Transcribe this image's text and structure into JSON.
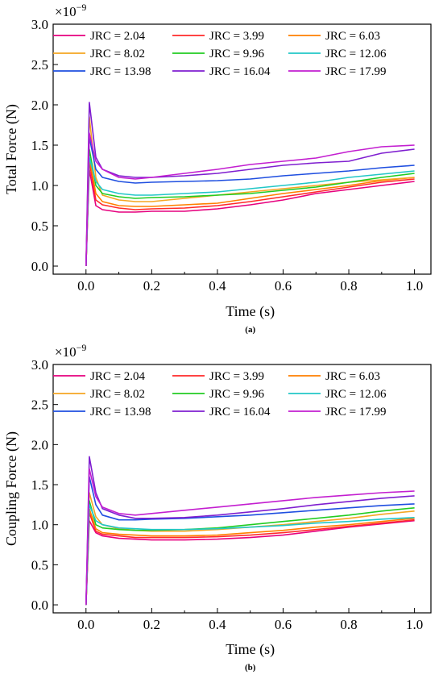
{
  "figure": {
    "background": "#ffffff"
  },
  "chart_data": [
    {
      "type": "line",
      "ylabel": "Total Force (N)",
      "xlabel": "Time (s)",
      "caption": "(a)",
      "multiplier_base": "×10",
      "multiplier_exp": "−9",
      "xlim": [
        -0.1,
        1.05
      ],
      "ylim": [
        -0.1,
        3.0
      ],
      "xticks": [
        "0.0",
        "0.2",
        "0.4",
        "0.6",
        "0.8",
        "1.0"
      ],
      "yticks": [
        "0.0",
        "0.5",
        "1.0",
        "1.5",
        "2.0",
        "2.5",
        "3.0"
      ],
      "legend_position": "top",
      "series": [
        {
          "name": "JRC = 2.04",
          "color": "#e6007e",
          "x": [
            0,
            0.01,
            0.03,
            0.05,
            0.1,
            0.15,
            0.2,
            0.3,
            0.4,
            0.5,
            0.6,
            0.7,
            0.8,
            0.9,
            1.0
          ],
          "y": [
            0,
            1.2,
            0.75,
            0.7,
            0.67,
            0.67,
            0.68,
            0.68,
            0.71,
            0.76,
            0.82,
            0.9,
            0.95,
            1.0,
            1.05
          ]
        },
        {
          "name": "JRC = 3.99",
          "color": "#ff2a2a",
          "x": [
            0,
            0.01,
            0.03,
            0.05,
            0.1,
            0.15,
            0.2,
            0.3,
            0.4,
            0.5,
            0.6,
            0.7,
            0.8,
            0.9,
            1.0
          ],
          "y": [
            0,
            1.3,
            0.82,
            0.76,
            0.72,
            0.7,
            0.71,
            0.72,
            0.75,
            0.8,
            0.86,
            0.92,
            0.98,
            1.04,
            1.08
          ]
        },
        {
          "name": "JRC = 6.03",
          "color": "#ff7f00",
          "x": [
            0,
            0.01,
            0.03,
            0.05,
            0.1,
            0.15,
            0.2,
            0.3,
            0.4,
            0.5,
            0.6,
            0.7,
            0.8,
            0.9,
            1.0
          ],
          "y": [
            0,
            1.35,
            0.9,
            0.8,
            0.75,
            0.74,
            0.74,
            0.76,
            0.78,
            0.84,
            0.9,
            0.95,
            1.0,
            1.06,
            1.1
          ]
        },
        {
          "name": "JRC = 8.02",
          "color": "#f5a623",
          "x": [
            0,
            0.01,
            0.03,
            0.05,
            0.1,
            0.15,
            0.2,
            0.3,
            0.4,
            0.5,
            0.6,
            0.7,
            0.8,
            0.9,
            1.0
          ],
          "y": [
            0,
            1.85,
            1.1,
            0.88,
            0.82,
            0.8,
            0.8,
            0.84,
            0.88,
            0.92,
            0.96,
            1.0,
            1.04,
            1.07,
            1.1
          ]
        },
        {
          "name": "JRC = 9.96",
          "color": "#22cc22",
          "x": [
            0,
            0.01,
            0.03,
            0.05,
            0.1,
            0.15,
            0.2,
            0.3,
            0.4,
            0.5,
            0.6,
            0.7,
            0.8,
            0.9,
            1.0
          ],
          "y": [
            0,
            1.45,
            1.0,
            0.9,
            0.86,
            0.84,
            0.85,
            0.86,
            0.88,
            0.9,
            0.94,
            0.98,
            1.04,
            1.1,
            1.15
          ]
        },
        {
          "name": "JRC = 12.06",
          "color": "#22c7c7",
          "x": [
            0,
            0.01,
            0.03,
            0.05,
            0.1,
            0.15,
            0.2,
            0.3,
            0.4,
            0.5,
            0.6,
            0.7,
            0.8,
            0.9,
            1.0
          ],
          "y": [
            0,
            1.35,
            1.05,
            0.95,
            0.9,
            0.88,
            0.88,
            0.9,
            0.92,
            0.96,
            1.0,
            1.04,
            1.1,
            1.14,
            1.18
          ]
        },
        {
          "name": "JRC = 13.98",
          "color": "#1f4fe0",
          "x": [
            0,
            0.01,
            0.03,
            0.05,
            0.1,
            0.15,
            0.2,
            0.3,
            0.4,
            0.5,
            0.6,
            0.7,
            0.8,
            0.9,
            1.0
          ],
          "y": [
            0,
            1.6,
            1.2,
            1.1,
            1.05,
            1.03,
            1.04,
            1.05,
            1.06,
            1.08,
            1.12,
            1.15,
            1.18,
            1.22,
            1.25
          ]
        },
        {
          "name": "JRC = 16.04",
          "color": "#7f1fd0",
          "x": [
            0,
            0.01,
            0.03,
            0.05,
            0.1,
            0.15,
            0.2,
            0.3,
            0.4,
            0.5,
            0.6,
            0.7,
            0.8,
            0.9,
            1.0
          ],
          "y": [
            0,
            2.03,
            1.35,
            1.2,
            1.12,
            1.1,
            1.1,
            1.12,
            1.15,
            1.2,
            1.25,
            1.28,
            1.3,
            1.4,
            1.45
          ]
        },
        {
          "name": "JRC = 17.99",
          "color": "#c31fd0",
          "x": [
            0,
            0.01,
            0.03,
            0.05,
            0.1,
            0.15,
            0.2,
            0.3,
            0.4,
            0.5,
            0.6,
            0.7,
            0.8,
            0.9,
            1.0
          ],
          "y": [
            0,
            1.65,
            1.3,
            1.2,
            1.1,
            1.08,
            1.1,
            1.15,
            1.2,
            1.26,
            1.3,
            1.34,
            1.42,
            1.48,
            1.5
          ]
        }
      ]
    },
    {
      "type": "line",
      "ylabel": "Coupling Force (N)",
      "xlabel": "Time (s)",
      "caption": "(b)",
      "multiplier_base": "×10",
      "multiplier_exp": "−9",
      "xlim": [
        -0.1,
        1.05
      ],
      "ylim": [
        -0.1,
        3.0
      ],
      "xticks": [
        "0.0",
        "0.2",
        "0.4",
        "0.6",
        "0.8",
        "1.0"
      ],
      "yticks": [
        "0.0",
        "0.5",
        "1.0",
        "1.5",
        "2.0",
        "2.5",
        "3.0"
      ],
      "legend_position": "top",
      "series": [
        {
          "name": "JRC = 2.04",
          "color": "#e6007e",
          "x": [
            0,
            0.01,
            0.03,
            0.05,
            0.1,
            0.15,
            0.2,
            0.3,
            0.4,
            0.5,
            0.6,
            0.7,
            0.8,
            0.9,
            1.0
          ],
          "y": [
            0,
            1.05,
            0.9,
            0.86,
            0.83,
            0.82,
            0.81,
            0.81,
            0.82,
            0.84,
            0.87,
            0.92,
            0.97,
            1.01,
            1.05
          ]
        },
        {
          "name": "JRC = 3.99",
          "color": "#ff2a2a",
          "x": [
            0,
            0.01,
            0.03,
            0.05,
            0.1,
            0.15,
            0.2,
            0.3,
            0.4,
            0.5,
            0.6,
            0.7,
            0.8,
            0.9,
            1.0
          ],
          "y": [
            0,
            1.15,
            0.92,
            0.88,
            0.86,
            0.84,
            0.84,
            0.84,
            0.85,
            0.87,
            0.9,
            0.94,
            0.98,
            1.02,
            1.06
          ]
        },
        {
          "name": "JRC = 6.03",
          "color": "#ff7f00",
          "x": [
            0,
            0.01,
            0.03,
            0.05,
            0.1,
            0.15,
            0.2,
            0.3,
            0.4,
            0.5,
            0.6,
            0.7,
            0.8,
            0.9,
            1.0
          ],
          "y": [
            0,
            1.2,
            0.95,
            0.9,
            0.88,
            0.87,
            0.86,
            0.86,
            0.87,
            0.9,
            0.93,
            0.97,
            1.0,
            1.04,
            1.08
          ]
        },
        {
          "name": "JRC = 8.02",
          "color": "#f5a623",
          "x": [
            0,
            0.01,
            0.03,
            0.05,
            0.1,
            0.15,
            0.2,
            0.3,
            0.4,
            0.5,
            0.6,
            0.7,
            0.8,
            0.9,
            1.0
          ],
          "y": [
            0,
            1.4,
            1.1,
            1.0,
            0.95,
            0.93,
            0.92,
            0.92,
            0.94,
            0.97,
            1.0,
            1.04,
            1.08,
            1.13,
            1.17
          ]
        },
        {
          "name": "JRC = 9.96",
          "color": "#22cc22",
          "x": [
            0,
            0.01,
            0.03,
            0.05,
            0.1,
            0.15,
            0.2,
            0.3,
            0.4,
            0.5,
            0.6,
            0.7,
            0.8,
            0.9,
            1.0
          ],
          "y": [
            0,
            1.3,
            1.0,
            0.96,
            0.94,
            0.93,
            0.93,
            0.94,
            0.96,
            1.0,
            1.04,
            1.08,
            1.12,
            1.17,
            1.21
          ]
        },
        {
          "name": "JRC = 12.06",
          "color": "#22c7c7",
          "x": [
            0,
            0.01,
            0.03,
            0.05,
            0.1,
            0.15,
            0.2,
            0.3,
            0.4,
            0.5,
            0.6,
            0.7,
            0.8,
            0.9,
            1.0
          ],
          "y": [
            0,
            1.25,
            1.05,
            1.0,
            0.96,
            0.95,
            0.94,
            0.94,
            0.95,
            0.97,
            0.99,
            1.02,
            1.04,
            1.07,
            1.09
          ]
        },
        {
          "name": "JRC = 13.98",
          "color": "#1f4fe0",
          "x": [
            0,
            0.01,
            0.03,
            0.05,
            0.1,
            0.15,
            0.2,
            0.3,
            0.4,
            0.5,
            0.6,
            0.7,
            0.8,
            0.9,
            1.0
          ],
          "y": [
            0,
            1.6,
            1.25,
            1.12,
            1.06,
            1.06,
            1.07,
            1.08,
            1.1,
            1.12,
            1.15,
            1.18,
            1.21,
            1.24,
            1.26
          ]
        },
        {
          "name": "JRC = 16.04",
          "color": "#7f1fd0",
          "x": [
            0,
            0.01,
            0.03,
            0.05,
            0.1,
            0.15,
            0.2,
            0.3,
            0.4,
            0.5,
            0.6,
            0.7,
            0.8,
            0.9,
            1.0
          ],
          "y": [
            0,
            1.85,
            1.4,
            1.2,
            1.12,
            1.08,
            1.08,
            1.09,
            1.12,
            1.16,
            1.2,
            1.25,
            1.29,
            1.33,
            1.36
          ]
        },
        {
          "name": "JRC = 17.99",
          "color": "#c31fd0",
          "x": [
            0,
            0.01,
            0.03,
            0.05,
            0.1,
            0.15,
            0.2,
            0.3,
            0.4,
            0.5,
            0.6,
            0.7,
            0.8,
            0.9,
            1.0
          ],
          "y": [
            0,
            1.7,
            1.35,
            1.22,
            1.14,
            1.12,
            1.14,
            1.18,
            1.22,
            1.26,
            1.3,
            1.34,
            1.37,
            1.4,
            1.42
          ]
        }
      ]
    }
  ]
}
